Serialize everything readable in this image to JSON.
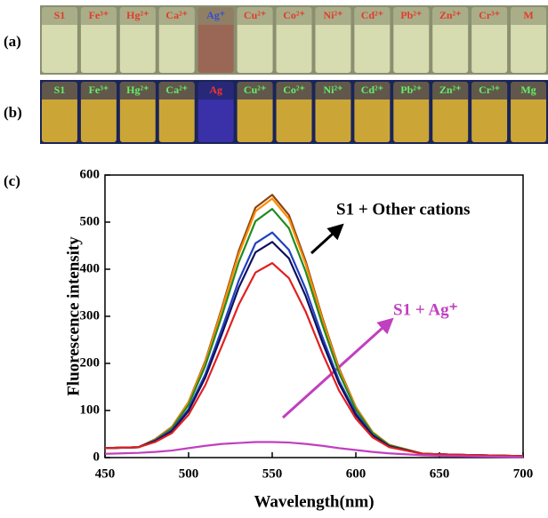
{
  "photos": {
    "a": {
      "label": "(a)",
      "samples": [
        "S1",
        "Fe³⁺",
        "Hg²⁺",
        "Ca²⁺",
        "Ag⁺",
        "Cu²⁺",
        "Co²⁺",
        "Ni²⁺",
        "Cd²⁺",
        "Pb²⁺",
        "Zn²⁺",
        "Cr³⁺",
        "M"
      ]
    },
    "b": {
      "label": "(b)",
      "samples": [
        "S1",
        "Fe³⁺",
        "Hg²⁺",
        "Ca²⁺",
        "Ag",
        "Cu²⁺",
        "Co²⁺",
        "Ni²⁺",
        "Cd²⁺",
        "Pb²⁺",
        "Zn²⁺",
        "Cr³⁺",
        "Mg"
      ]
    }
  },
  "chart_data": {
    "type": "line",
    "panel_label": "(c)",
    "x_label": "Wavelength(nm)",
    "y_label": "Fluorescence intensity",
    "annotations": [
      {
        "text": "S1 + Other cations",
        "color": "#000000"
      },
      {
        "text": "S1 + Ag⁺",
        "color": "#c040c0"
      }
    ],
    "x": [
      450,
      470,
      480,
      490,
      500,
      510,
      520,
      530,
      540,
      550,
      560,
      570,
      580,
      590,
      600,
      610,
      620,
      640,
      660,
      700
    ],
    "series": [
      {
        "color": "#8b4513",
        "values": [
          20,
          22,
          39,
          65,
          118,
          205,
          319,
          439,
          531,
          558,
          515,
          417,
          297,
          189,
          107,
          54,
          27,
          8,
          6,
          3
        ]
      },
      {
        "color": "#ff8c00",
        "values": [
          20,
          22,
          38,
          64,
          117,
          202,
          315,
          432,
          523,
          550,
          507,
          411,
          293,
          186,
          106,
          54,
          27,
          8,
          6,
          3
        ]
      },
      {
        "color": "#228b22",
        "values": [
          20,
          22,
          37,
          62,
          112,
          195,
          302,
          415,
          502,
          528,
          487,
          395,
          282,
          179,
          102,
          52,
          26,
          8,
          6,
          3
        ]
      },
      {
        "color": "#2040c0",
        "values": [
          20,
          22,
          36,
          58,
          103,
          177,
          274,
          376,
          455,
          478,
          441,
          358,
          256,
          163,
          94,
          48,
          24,
          8,
          6,
          3
        ]
      },
      {
        "color": "#101060",
        "values": [
          20,
          22,
          35,
          56,
          99,
          170,
          263,
          361,
          436,
          458,
          423,
          343,
          245,
          157,
          90,
          47,
          24,
          8,
          6,
          3
        ]
      },
      {
        "color": "#e02020",
        "values": [
          20,
          22,
          33,
          52,
          91,
          154,
          238,
          325,
          393,
          413,
          381,
          310,
          222,
          142,
          83,
          43,
          22,
          8,
          6,
          3
        ]
      },
      {
        "color": "#c040c0",
        "values": [
          8,
          10,
          12,
          15,
          20,
          25,
          29,
          31,
          33,
          33,
          32,
          29,
          25,
          20,
          16,
          12,
          9,
          5,
          3,
          1
        ]
      }
    ],
    "xlim": [
      450,
      700
    ],
    "xticks": [
      450,
      500,
      550,
      600,
      650,
      700
    ],
    "ylim": [
      0,
      600
    ],
    "yticks": [
      0,
      100,
      200,
      300,
      400,
      500,
      600
    ]
  }
}
